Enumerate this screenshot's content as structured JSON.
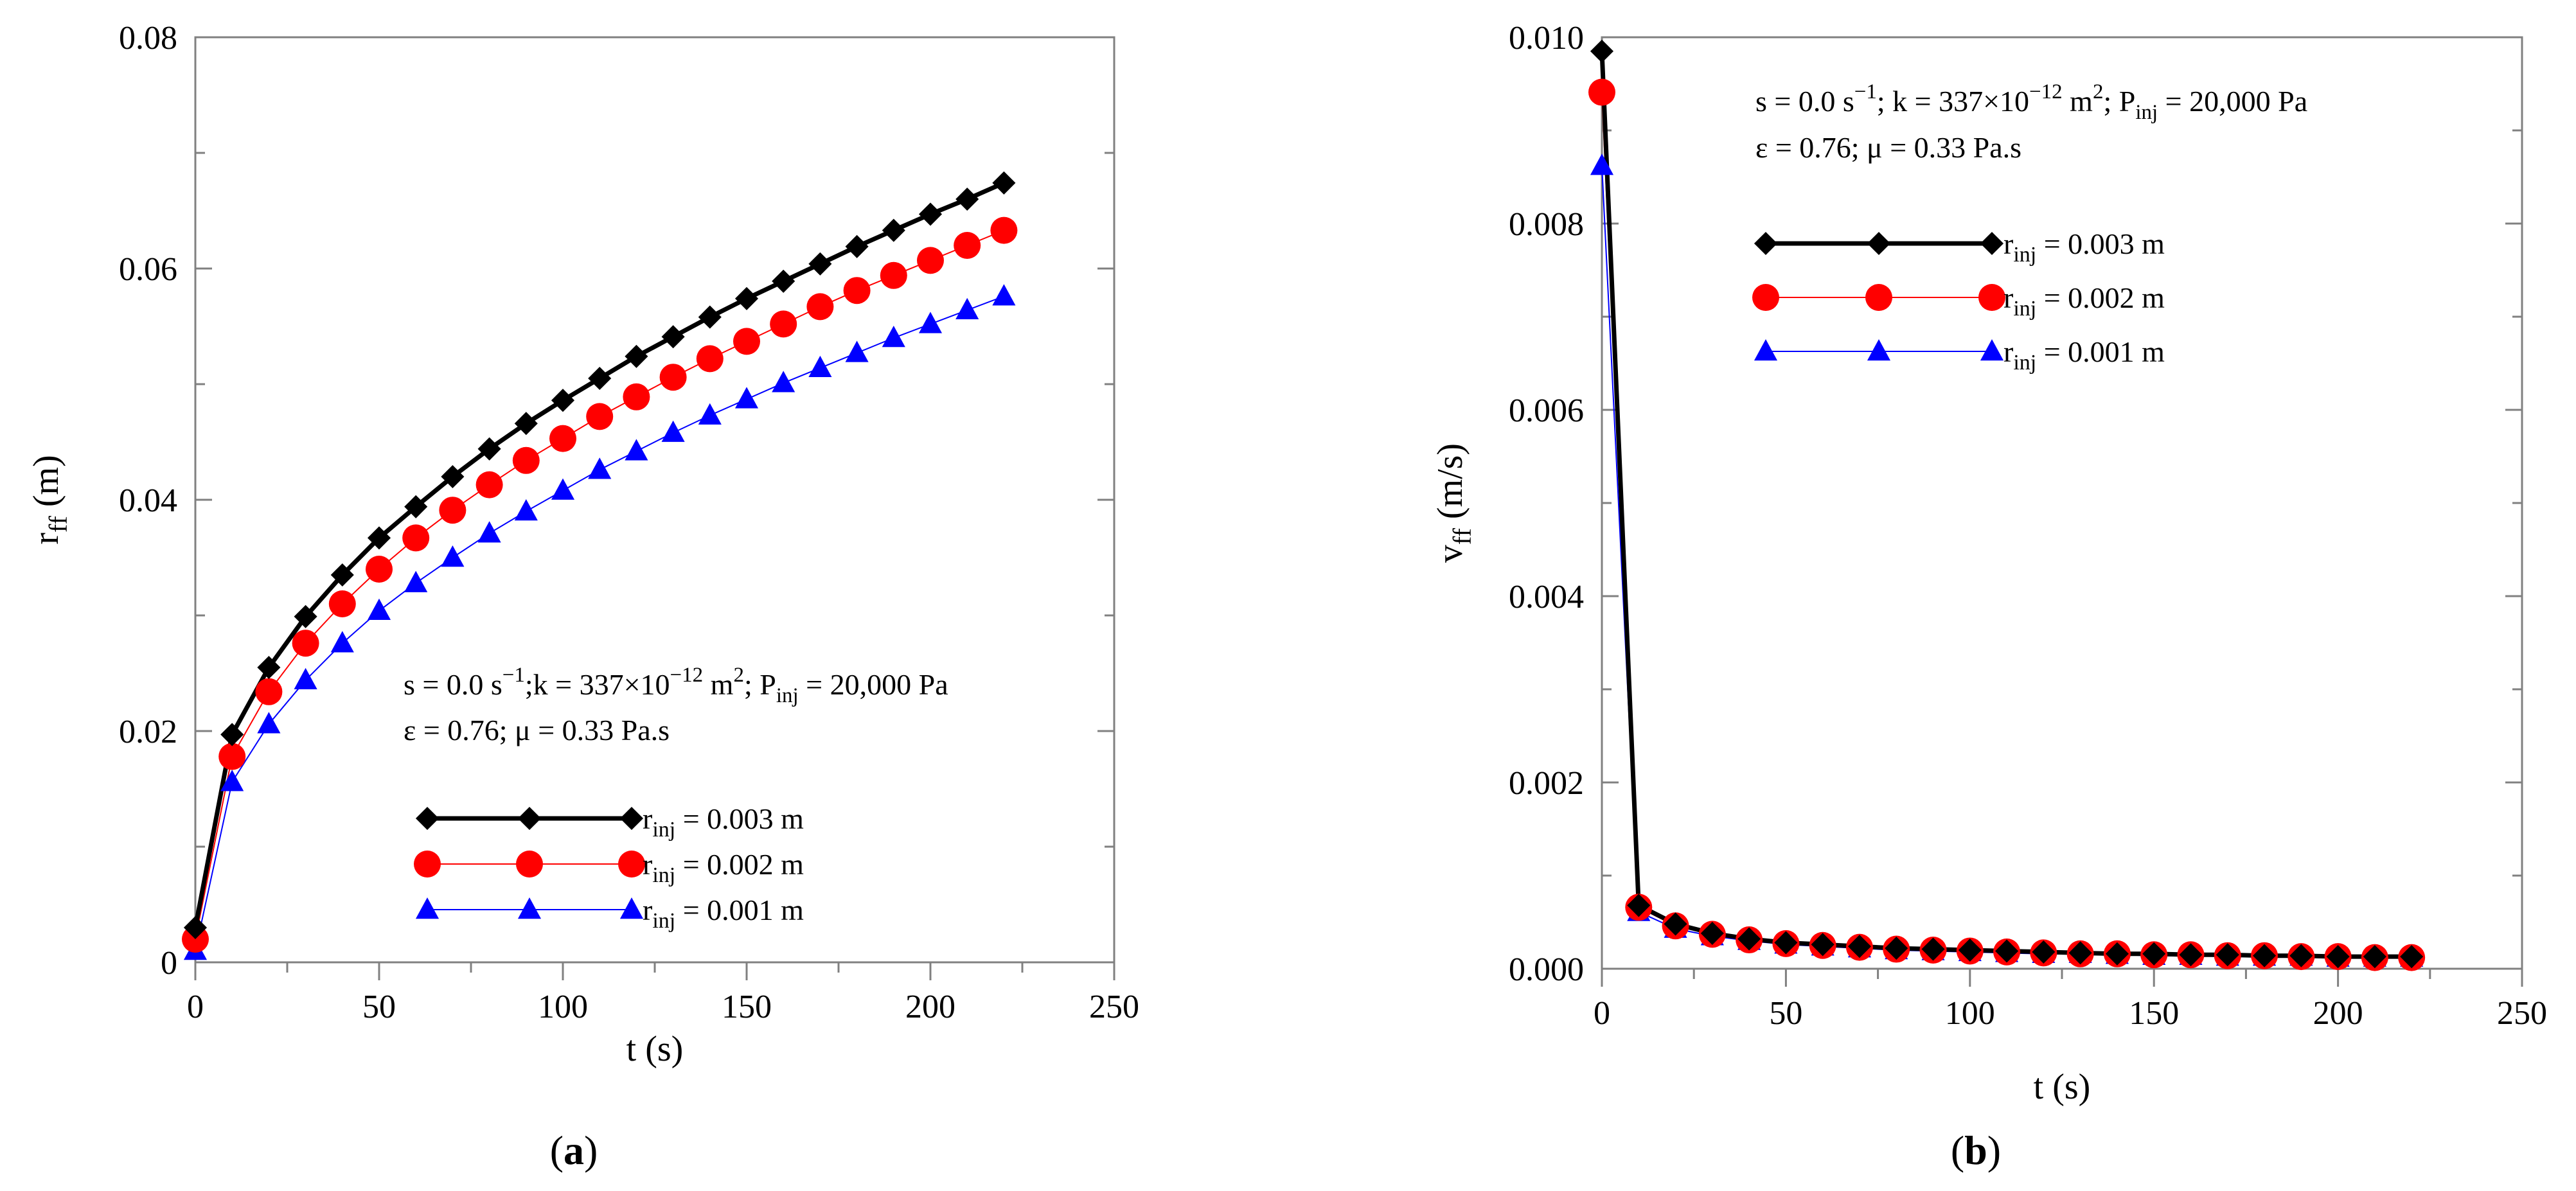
{
  "chart_data": [
    {
      "type": "line",
      "panel_label": {
        "open": "(",
        "letter": "a",
        "close": ")"
      },
      "xlabel": "t (s)",
      "ylabel": {
        "base": "r",
        "sub": "ff",
        "unit": " (m)"
      },
      "xlim": [
        0,
        250
      ],
      "ylim": [
        0,
        0.08
      ],
      "x_ticks": [
        0,
        50,
        100,
        150,
        200,
        250
      ],
      "x_tick_labels": [
        "0",
        "50",
        "100",
        "150",
        "200",
        "250"
      ],
      "y_ticks": [
        0,
        0.02,
        0.04,
        0.06,
        0.08
      ],
      "y_tick_labels": [
        "0",
        "0.02",
        "0.04",
        "0.06",
        "0.08"
      ],
      "annotation": {
        "line1": {
          "t1": "s = 0.0 s",
          "sup1": "−1",
          "t2": ";k = 337×10",
          "sup2": "−12",
          "t3": " m",
          "sup3": "2",
          "t4": "; P",
          "sub4": "inj",
          "t5": " = 20,000 Pa"
        },
        "line2": "ε = 0.76; μ = 0.33 Pa.s"
      },
      "x": [
        0,
        10,
        20,
        30,
        40,
        50,
        60,
        70,
        80,
        90,
        100,
        110,
        120,
        130,
        140,
        150,
        160,
        170,
        180,
        190,
        200,
        210,
        220
      ],
      "series": [
        {
          "name": "r_inj = 0.003 m",
          "label_base": "r",
          "label_sub": "inj",
          "label_rest": " = 0.003 m",
          "marker": "diamond",
          "color": "#000000",
          "line_width": 7,
          "values": [
            0.003,
            0.0197,
            0.0255,
            0.0299,
            0.0335,
            0.0367,
            0.0394,
            0.042,
            0.0444,
            0.0466,
            0.0486,
            0.0505,
            0.0524,
            0.0541,
            0.0558,
            0.0574,
            0.0589,
            0.0604,
            0.0619,
            0.0633,
            0.0647,
            0.066,
            0.0674
          ]
        },
        {
          "name": "r_inj = 0.002 m",
          "label_base": "r",
          "label_sub": "inj",
          "label_rest": " = 0.002 m",
          "marker": "circle",
          "color": "#ff0000",
          "line_width": 2,
          "values": [
            0.002,
            0.0178,
            0.0234,
            0.0276,
            0.031,
            0.034,
            0.0367,
            0.0391,
            0.0413,
            0.0434,
            0.0453,
            0.0472,
            0.0489,
            0.0506,
            0.0522,
            0.0537,
            0.0552,
            0.0567,
            0.0581,
            0.0594,
            0.0607,
            0.062,
            0.0633
          ]
        },
        {
          "name": "r_inj = 0.001 m",
          "label_base": "r",
          "label_sub": "inj",
          "label_rest": " = 0.001 m",
          "marker": "triangle",
          "color": "#0000ff",
          "line_width": 2,
          "values": [
            0.001,
            0.0156,
            0.0206,
            0.0244,
            0.0276,
            0.0304,
            0.0328,
            0.035,
            0.0371,
            0.039,
            0.0408,
            0.0426,
            0.0442,
            0.0458,
            0.0473,
            0.0487,
            0.0501,
            0.0514,
            0.0527,
            0.054,
            0.0552,
            0.0564,
            0.0576
          ]
        }
      ]
    },
    {
      "type": "line",
      "panel_label": {
        "open": "(",
        "letter": "b",
        "close": ")"
      },
      "xlabel": "t (s)",
      "ylabel": {
        "base": "v",
        "sub": "ff",
        "unit": " (m/s)"
      },
      "xlim": [
        0,
        250
      ],
      "ylim": [
        0,
        0.01
      ],
      "x_ticks": [
        0,
        50,
        100,
        150,
        200,
        250
      ],
      "x_tick_labels": [
        "0",
        "50",
        "100",
        "150",
        "200",
        "250"
      ],
      "y_ticks": [
        0,
        0.002,
        0.004,
        0.006,
        0.008,
        0.01
      ],
      "y_tick_labels": [
        "0.000",
        "0.002",
        "0.004",
        "0.006",
        "0.008",
        "0.010"
      ],
      "annotation": {
        "line1": {
          "t1": "s = 0.0 s",
          "sup1": "−1",
          "t2": "; k = 337×10",
          "sup2": "−12",
          "t3": " m",
          "sup3": "2",
          "t4": "; P",
          "sub4": "inj",
          "t5": " = 20,000 Pa"
        },
        "line2": "ε = 0.76; μ = 0.33 Pa.s"
      },
      "x": [
        0,
        10,
        20,
        30,
        40,
        50,
        60,
        70,
        80,
        90,
        100,
        110,
        120,
        130,
        140,
        150,
        160,
        170,
        180,
        190,
        200,
        210,
        220
      ],
      "series": [
        {
          "name": "r_inj = 0.003 m",
          "label_base": "r",
          "label_sub": "inj",
          "label_rest": " = 0.003 m",
          "marker": "diamond",
          "color": "#000000",
          "line_width": 7,
          "values": [
            0.00985,
            0.00068,
            0.00048,
            0.00038,
            0.00032,
            0.00028,
            0.00026,
            0.00024,
            0.00022,
            0.00021,
            0.0002,
            0.00019,
            0.00018,
            0.00017,
            0.00016,
            0.00016,
            0.00015,
            0.00015,
            0.00014,
            0.00014,
            0.00013,
            0.00013,
            0.00013
          ]
        },
        {
          "name": "r_inj = 0.002 m",
          "label_base": "r",
          "label_sub": "inj",
          "label_rest": " = 0.002 m",
          "marker": "circle",
          "color": "#ff0000",
          "line_width": 2,
          "values": [
            0.00941,
            0.00066,
            0.00046,
            0.00037,
            0.00031,
            0.00027,
            0.00025,
            0.00023,
            0.00021,
            0.0002,
            0.00019,
            0.00018,
            0.00017,
            0.00016,
            0.00016,
            0.00015,
            0.00015,
            0.00014,
            0.00014,
            0.00013,
            0.00013,
            0.00012,
            0.00012
          ]
        },
        {
          "name": "r_inj = 0.001 m",
          "label_base": "r",
          "label_sub": "inj",
          "label_rest": " = 0.001 m",
          "marker": "triangle",
          "color": "#0000ff",
          "line_width": 2,
          "values": [
            0.00862,
            0.00061,
            0.00043,
            0.00035,
            0.0003,
            0.00026,
            0.00024,
            0.00022,
            0.0002,
            0.00019,
            0.00018,
            0.00017,
            0.00016,
            0.00016,
            0.00015,
            0.00014,
            0.00014,
            0.00013,
            0.00013,
            0.00013,
            0.00012,
            0.00012,
            0.00012
          ]
        }
      ]
    }
  ]
}
